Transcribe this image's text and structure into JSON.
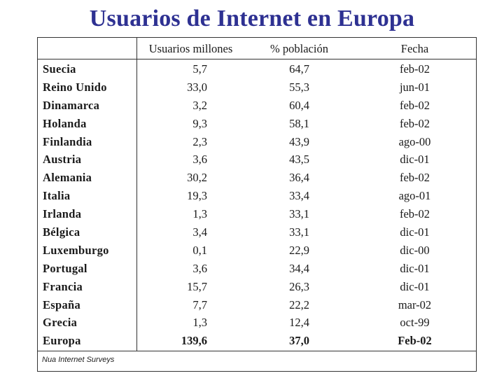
{
  "title": "Usuarios de Internet en Europa",
  "header": {
    "users": "Usuarios millones",
    "percent": "% población",
    "date": "Fecha"
  },
  "rows": [
    {
      "country": "Suecia",
      "users": "5,7",
      "percent": "64,7",
      "date": "feb-02"
    },
    {
      "country": "Reino Unido",
      "users": "33,0",
      "percent": "55,3",
      "date": "jun-01"
    },
    {
      "country": "Dinamarca",
      "users": "3,2",
      "percent": "60,4",
      "date": "feb-02"
    },
    {
      "country": "Holanda",
      "users": "9,3",
      "percent": "58,1",
      "date": "feb-02"
    },
    {
      "country": "Finlandia",
      "users": "2,3",
      "percent": "43,9",
      "date": "ago-00"
    },
    {
      "country": "Austria",
      "users": "3,6",
      "percent": "43,5",
      "date": "dic-01"
    },
    {
      "country": "Alemania",
      "users": "30,2",
      "percent": "36,4",
      "date": "feb-02"
    },
    {
      "country": "Italia",
      "users": "19,3",
      "percent": "33,4",
      "date": "ago-01"
    },
    {
      "country": "Irlanda",
      "users": "1,3",
      "percent": "33,1",
      "date": "feb-02"
    },
    {
      "country": "Bélgica",
      "users": "3,4",
      "percent": "33,1",
      "date": "dic-01"
    },
    {
      "country": "Luxemburgo",
      "users": "0,1",
      "percent": "22,9",
      "date": "dic-00"
    },
    {
      "country": "Portugal",
      "users": "3,6",
      "percent": "34,4",
      "date": "dic-01"
    },
    {
      "country": "Francia",
      "users": "15,7",
      "percent": "26,3",
      "date": "dic-01"
    },
    {
      "country": "España",
      "users": "7,7",
      "percent": "22,2",
      "date": "mar-02"
    },
    {
      "country": "Grecia",
      "users": "1,3",
      "percent": "12,4",
      "date": "oct-99"
    }
  ],
  "total": {
    "country": "Europa",
    "users": "139,6",
    "percent": "37,0",
    "date": "Feb-02"
  },
  "source": "Nua Internet Surveys",
  "colors": {
    "title": "#2e3192",
    "text": "#1a1a1a",
    "border": "#333333"
  }
}
